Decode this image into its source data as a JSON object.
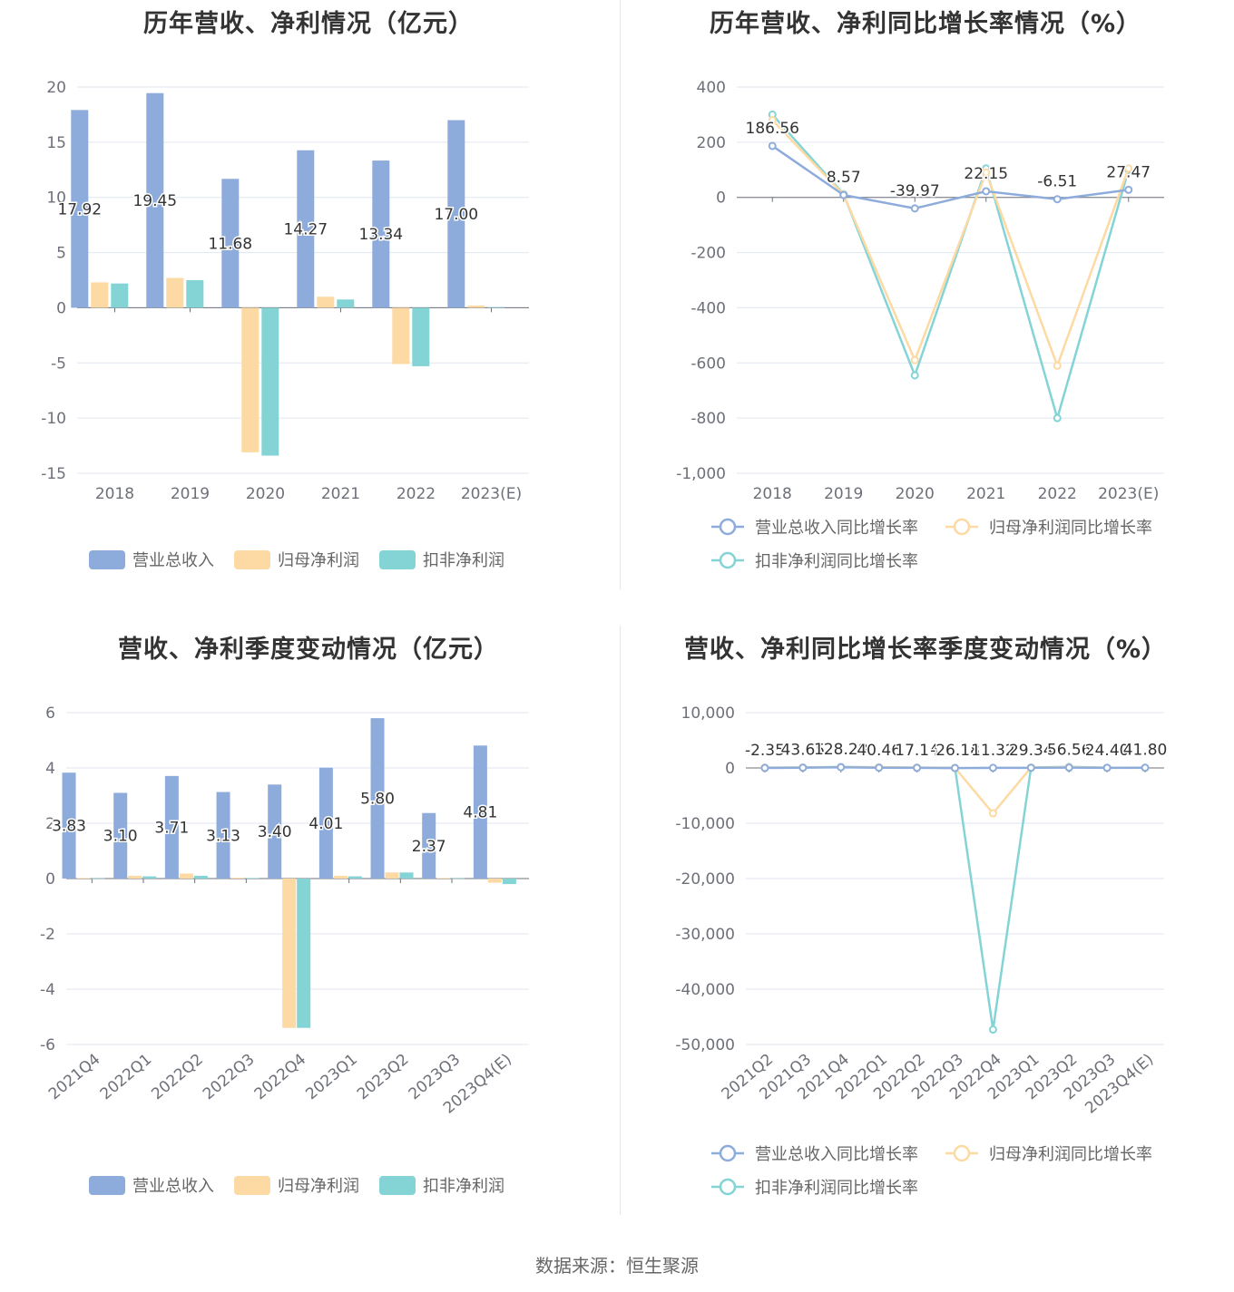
{
  "source_text": "数据来源：恒生聚源",
  "colors": {
    "revenue": "#8eacdb",
    "net_profit": "#fdd9a3",
    "deducted_profit": "#84d4d6"
  },
  "chart_data": [
    {
      "id": "annual-values",
      "type": "bar",
      "title": "历年营收、净利情况（亿元）",
      "categories": [
        "2018",
        "2019",
        "2020",
        "2021",
        "2022",
        "2023(E)"
      ],
      "ylim": [
        -15,
        20
      ],
      "yticks": [
        20,
        15,
        10,
        5,
        0,
        -5,
        -10,
        -15
      ],
      "series": [
        {
          "name": "营业总收入",
          "values": [
            17.92,
            19.45,
            11.68,
            14.27,
            13.34,
            17.0
          ],
          "labels": [
            "17.92",
            "19.45",
            "11.68",
            "14.27",
            "13.34",
            "17.00"
          ]
        },
        {
          "name": "归母净利润",
          "values": [
            2.3,
            2.7,
            -13.1,
            1.0,
            -5.1,
            0.2
          ]
        },
        {
          "name": "扣非净利润",
          "values": [
            2.2,
            2.5,
            -13.4,
            0.75,
            -5.3,
            0.05
          ]
        }
      ],
      "grid": true,
      "legend": "bottom"
    },
    {
      "id": "annual-growth",
      "type": "line",
      "title": "历年营收、净利同比增长率情况（%）",
      "categories": [
        "2018",
        "2019",
        "2020",
        "2021",
        "2022",
        "2023(E)"
      ],
      "ylim": [
        -1000,
        400
      ],
      "yticks": [
        400,
        200,
        0,
        -200,
        -400,
        -600,
        -800,
        -1000
      ],
      "ytick_labels": [
        "400",
        "200",
        "0",
        "-200",
        "-400",
        "-600",
        "-800",
        "-1,000"
      ],
      "series": [
        {
          "name": "营业总收入同比增长率",
          "values": [
            186.56,
            8.57,
            -39.97,
            22.15,
            -6.51,
            27.47
          ],
          "labels": [
            "186.56",
            "8.57",
            "-39.97",
            "22.15",
            "-6.51",
            "27.47"
          ]
        },
        {
          "name": "归母净利润同比增长率",
          "values": [
            280,
            10,
            -590,
            90,
            -610,
            105
          ]
        },
        {
          "name": "扣非净利润同比增长率",
          "values": [
            300,
            12,
            -645,
            105,
            -800,
            100
          ]
        }
      ],
      "grid": true,
      "legend": "bottom"
    },
    {
      "id": "quarterly-values",
      "type": "bar",
      "title": "营收、净利季度变动情况（亿元）",
      "categories": [
        "2021Q4",
        "2022Q1",
        "2022Q2",
        "2022Q3",
        "2022Q4",
        "2023Q1",
        "2023Q2",
        "2023Q3",
        "2023Q4(E)"
      ],
      "ylim": [
        -6,
        6
      ],
      "yticks": [
        6,
        4,
        2,
        0,
        -2,
        -4,
        -6
      ],
      "series": [
        {
          "name": "营业总收入",
          "values": [
            3.83,
            3.1,
            3.71,
            3.13,
            3.4,
            4.01,
            5.8,
            2.37,
            4.81
          ],
          "labels": [
            "3.83",
            "3.10",
            "3.71",
            "3.13",
            "3.40",
            "4.01",
            "5.80",
            "2.37",
            "4.81"
          ]
        },
        {
          "name": "归母净利润",
          "values": [
            0.02,
            0.1,
            0.18,
            0.03,
            -5.4,
            0.1,
            0.22,
            0.02,
            -0.15
          ]
        },
        {
          "name": "扣非净利润",
          "values": [
            0.01,
            0.08,
            0.1,
            0.02,
            -5.4,
            0.08,
            0.22,
            0.01,
            -0.2
          ]
        }
      ],
      "grid": true,
      "legend": "bottom"
    },
    {
      "id": "quarterly-growth",
      "type": "line",
      "title": "营收、净利同比增长率季度变动情况（%）",
      "categories": [
        "2021Q2",
        "2021Q3",
        "2021Q4",
        "2022Q1",
        "2022Q2",
        "2022Q3",
        "2022Q4",
        "2023Q1",
        "2023Q2",
        "2023Q3",
        "2023Q4(E)"
      ],
      "ylim": [
        -50000,
        10000
      ],
      "yticks": [
        10000,
        0,
        -10000,
        -20000,
        -30000,
        -40000,
        -50000
      ],
      "ytick_labels": [
        "10,000",
        "0",
        "-10,000",
        "-20,000",
        "-30,000",
        "-40,000",
        "-50,000"
      ],
      "series": [
        {
          "name": "营业总收入同比增长率",
          "values": [
            -2.35,
            43.65,
            128.28,
            40.46,
            17.14,
            -26.18,
            11.32,
            29.34,
            56.56,
            24.4,
            41.8
          ],
          "labels": [
            "-2.35",
            "43.65",
            "128.28",
            "40.46",
            "17.14",
            "-26.18",
            "11.32",
            "29.34",
            "56.56",
            "24.40",
            "41.80"
          ]
        },
        {
          "name": "归母净利润同比增长率",
          "values": [
            50,
            80,
            150,
            120,
            60,
            10,
            -8200,
            80,
            150,
            40,
            30
          ]
        },
        {
          "name": "扣非净利润同比增长率",
          "values": [
            60,
            90,
            180,
            130,
            70,
            20,
            -47300,
            90,
            200,
            50,
            40
          ]
        }
      ],
      "grid": true,
      "legend": "bottom"
    }
  ]
}
